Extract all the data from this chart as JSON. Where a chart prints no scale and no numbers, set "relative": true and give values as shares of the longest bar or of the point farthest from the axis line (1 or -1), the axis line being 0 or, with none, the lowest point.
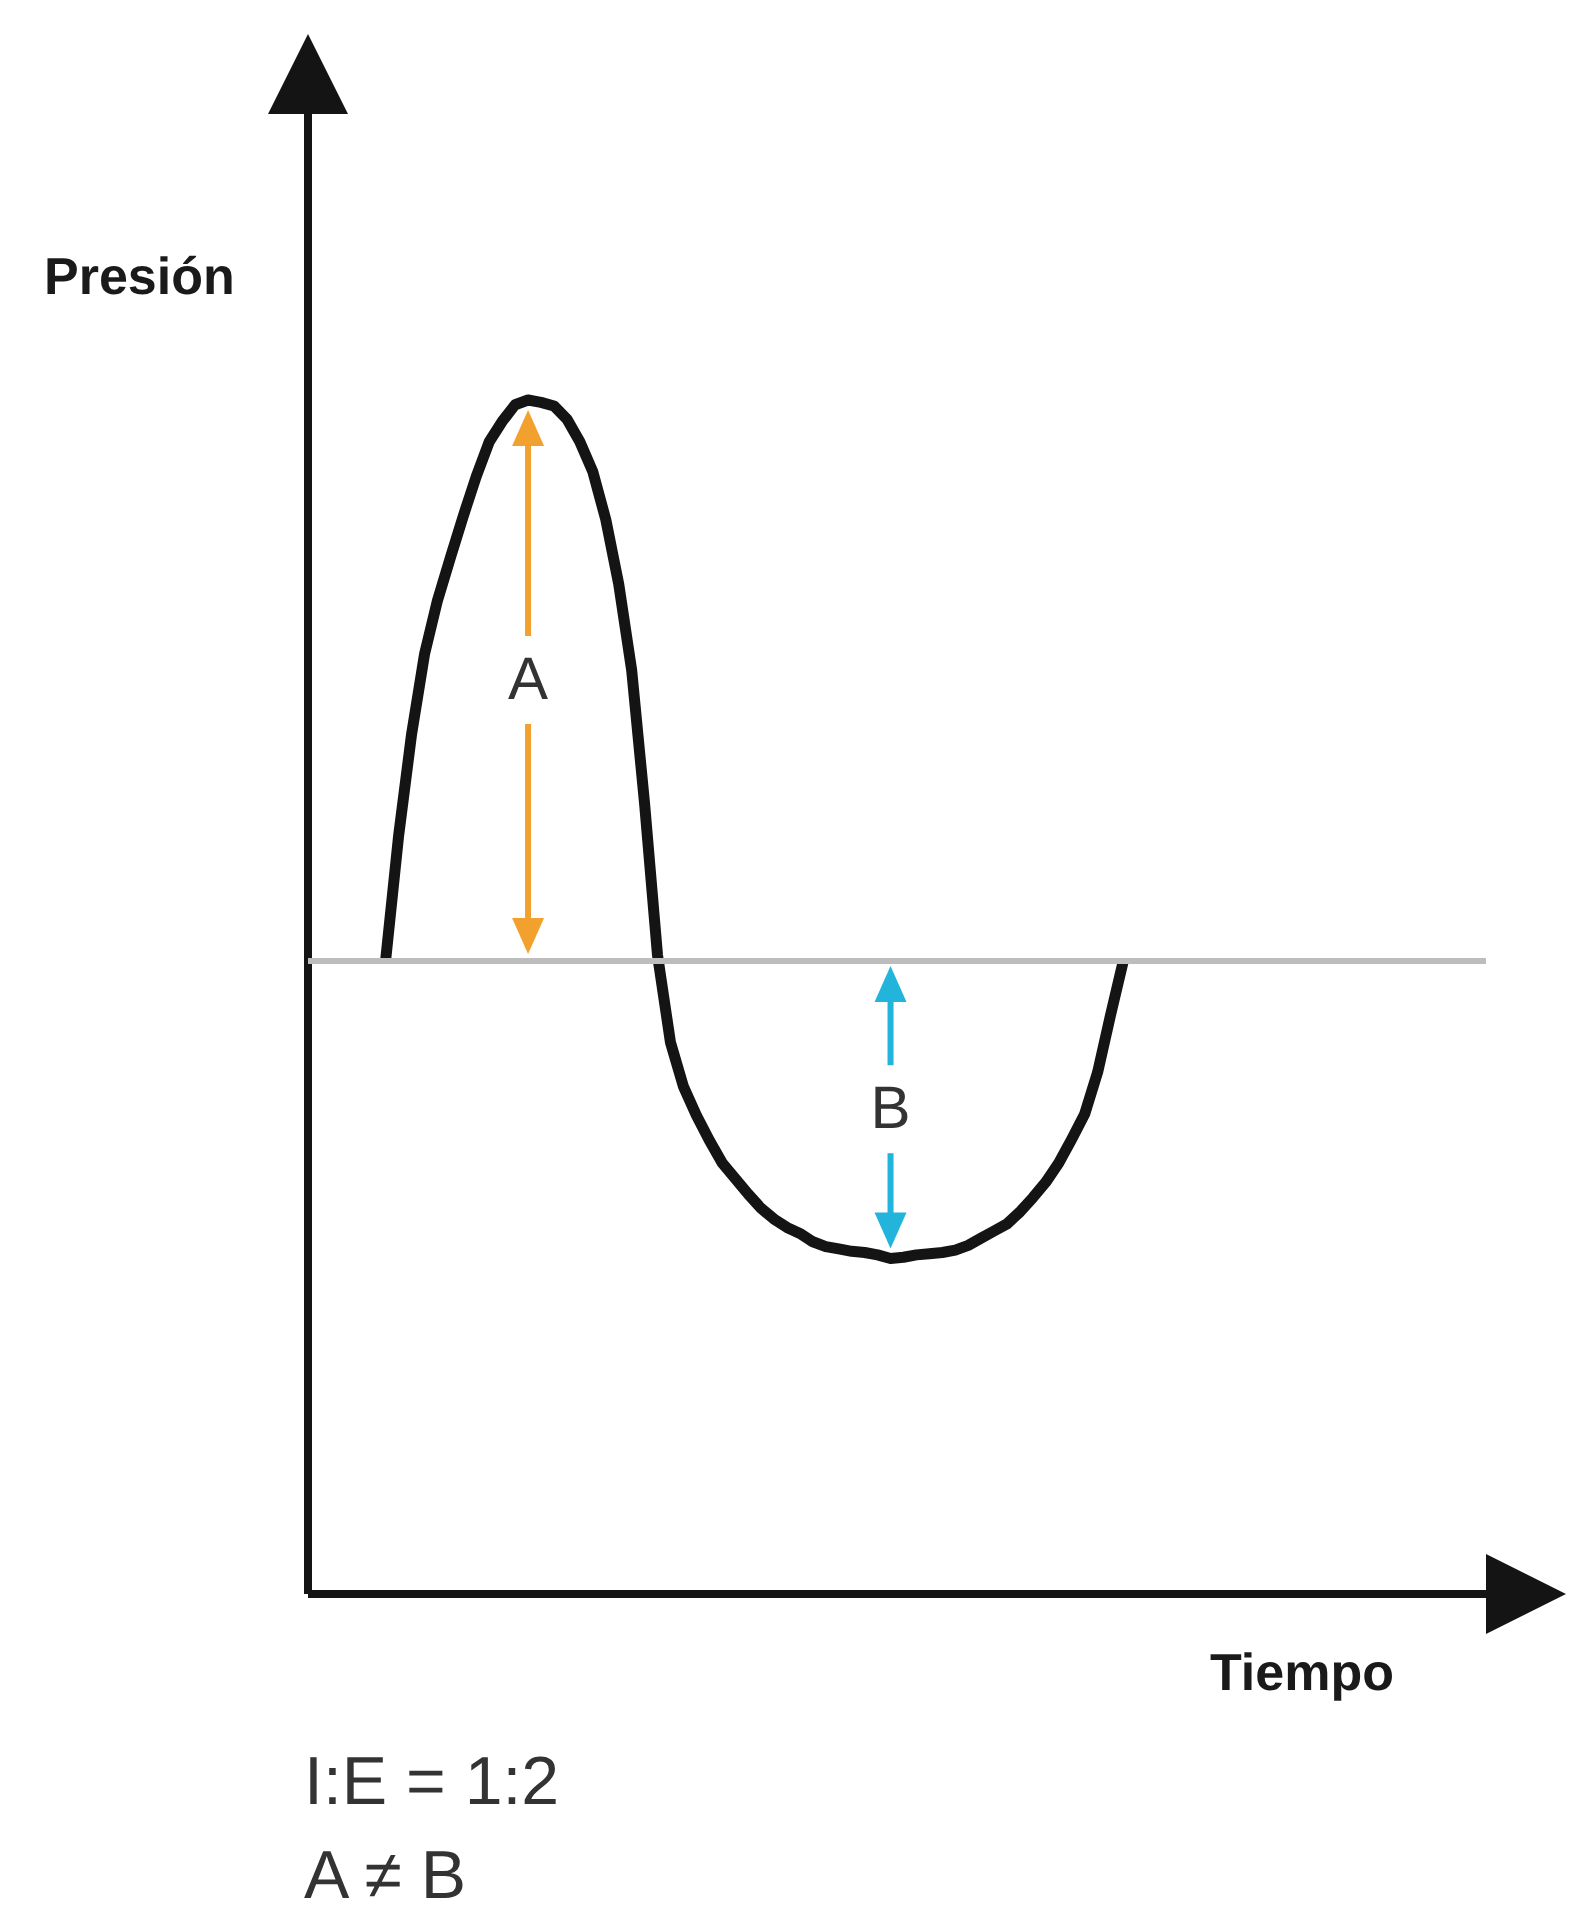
{
  "chart_data": {
    "type": "line",
    "relative": true,
    "xlabel": "Tiempo",
    "ylabel": "Presión",
    "marker": "none",
    "color": "#141414",
    "categories": [
      null,
      null,
      null,
      null,
      null,
      null,
      null,
      null,
      null,
      null,
      null,
      null,
      null,
      null,
      null,
      null,
      null,
      null,
      null,
      null,
      null,
      null,
      null,
      null,
      null,
      null,
      null,
      null,
      null,
      null,
      null,
      null,
      null,
      null,
      null,
      null,
      null,
      null,
      null,
      null,
      null,
      null,
      null,
      null,
      null,
      null,
      null,
      null,
      null,
      null,
      null,
      null,
      null,
      null,
      null,
      null,
      null,
      null,
      null,
      null,
      null,
      null,
      null,
      null,
      null,
      null,
      null,
      null,
      null,
      null,
      null,
      null,
      null,
      null,
      null,
      null,
      null,
      null,
      null,
      null,
      null,
      null,
      null,
      null,
      null,
      null,
      null,
      null,
      null,
      null,
      null,
      null
    ],
    "values": [
      null,
      null,
      null,
      null,
      null,
      null,
      0.531,
      0.635,
      0.72,
      0.787,
      0.832,
      0.868,
      0.903,
      0.936,
      0.965,
      0.982,
      0.996,
      1,
      0.998,
      0.995,
      0.984,
      0.965,
      0.94,
      0.9,
      0.846,
      0.774,
      0.662,
      0.535,
      0.462,
      0.425,
      0.401,
      0.38,
      0.361,
      0.348,
      0.335,
      0.323,
      0.314,
      0.307,
      0.302,
      0.295,
      0.291,
      0.289,
      0.287,
      0.286,
      0.284,
      0.281,
      0.282,
      0.284,
      0.285,
      0.286,
      0.288,
      0.292,
      0.298,
      0.304,
      0.31,
      0.32,
      0.332,
      0.345,
      0.361,
      0.381,
      0.402,
      0.437,
      0.485,
      0.531,
      null,
      null,
      null,
      null,
      null,
      null,
      null,
      null,
      null,
      null,
      null,
      null,
      null,
      null,
      null,
      null,
      null,
      null,
      null,
      null,
      null,
      null,
      null,
      null,
      null,
      null,
      null,
      null
    ],
    "ref_lines": [
      {
        "axis": "y",
        "value": 0.531,
        "color": "#bdbdbd"
      }
    ],
    "annotations": [
      "A",
      "B",
      "I:E = 1:2",
      "A ≠ B"
    ]
  }
}
